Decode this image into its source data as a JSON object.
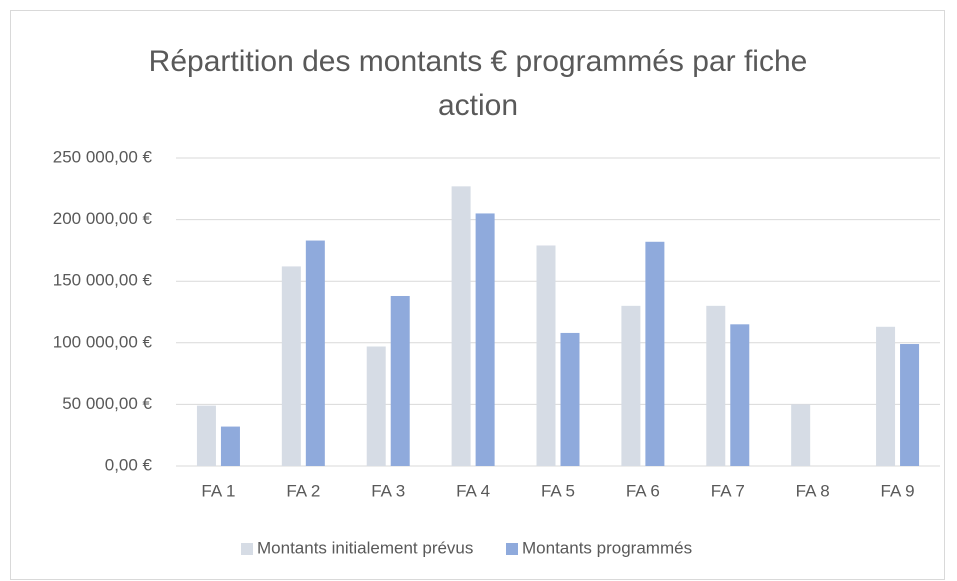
{
  "chart_data": {
    "type": "bar",
    "title": "Répartition des montants € programmés par fiche action",
    "categories": [
      "FA 1",
      "FA 2",
      "FA 3",
      "FA 4",
      "FA 5",
      "FA 6",
      "FA 7",
      "FA 8",
      "FA 9"
    ],
    "series": [
      {
        "name": "Montants initialement prévus",
        "color": "#d6dce5",
        "values": [
          49000,
          162000,
          97000,
          227000,
          179000,
          130000,
          130000,
          50000,
          113000
        ]
      },
      {
        "name": "Montants programmés",
        "color": "#8faadc",
        "values": [
          32000,
          183000,
          138000,
          205000,
          108000,
          182000,
          115000,
          0,
          99000
        ]
      }
    ],
    "ylim": [
      0,
      250000
    ],
    "yticks": [
      {
        "value": 0,
        "label": "0,00 €"
      },
      {
        "value": 50000,
        "label": "50 000,00 €"
      },
      {
        "value": 100000,
        "label": "100 000,00 €"
      },
      {
        "value": 150000,
        "label": "150 000,00 €"
      },
      {
        "value": 200000,
        "label": "200 000,00 €"
      },
      {
        "value": 250000,
        "label": "250 000,00 €"
      }
    ],
    "grid": true,
    "legend": "bottom"
  }
}
